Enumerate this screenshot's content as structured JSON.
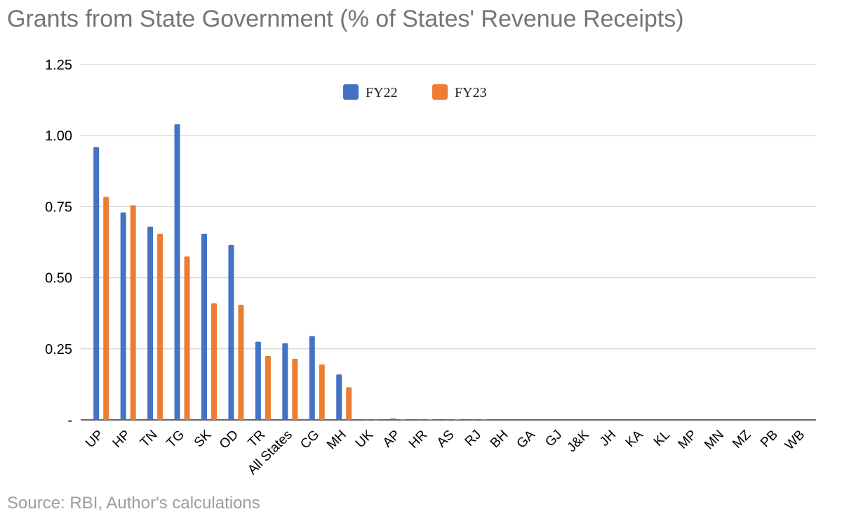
{
  "title": "Grants from State Government (% of States' Revenue Receipts)",
  "source": "Source: RBI, Author's calculations",
  "chart_data": {
    "type": "bar",
    "title": "Grants from State Government (% of States' Revenue Receipts)",
    "xlabel": "",
    "ylabel": "",
    "ylim": [
      0,
      1.25
    ],
    "yticks": [
      {
        "value": 0,
        "label": "-"
      },
      {
        "value": 0.25,
        "label": "0.25"
      },
      {
        "value": 0.5,
        "label": "0.50"
      },
      {
        "value": 0.75,
        "label": "0.75"
      },
      {
        "value": 1.0,
        "label": "1.00"
      },
      {
        "value": 1.25,
        "label": "1.25"
      }
    ],
    "grid": true,
    "legend_position": "top-center",
    "categories": [
      "UP",
      "HP",
      "TN",
      "TG",
      "SK",
      "OD",
      "TR",
      "All States",
      "CG",
      "MH",
      "UK",
      "AP",
      "HR",
      "AS",
      "RJ",
      "BH",
      "GA",
      "GJ",
      "J&K",
      "JH",
      "KA",
      "KL",
      "MP",
      "MN",
      "MZ",
      "PB",
      "WB"
    ],
    "series": [
      {
        "name": "FY22",
        "color": "#4472c4",
        "values": [
          0.96,
          0.73,
          0.68,
          1.04,
          0.655,
          0.615,
          0.275,
          0.27,
          0.295,
          0.16,
          0.002,
          0.005,
          0.002,
          0.002,
          0.002,
          0,
          0,
          0,
          0,
          0,
          0,
          0,
          0,
          0,
          0,
          0,
          0
        ]
      },
      {
        "name": "FY23",
        "color": "#ed7d31",
        "values": [
          0.785,
          0.755,
          0.655,
          0.575,
          0.41,
          0.405,
          0.225,
          0.215,
          0.195,
          0.115,
          0.001,
          0.002,
          0.002,
          0.002,
          0.002,
          0,
          0,
          0,
          0,
          0,
          0,
          0,
          0,
          0,
          0,
          0,
          0
        ]
      }
    ]
  }
}
